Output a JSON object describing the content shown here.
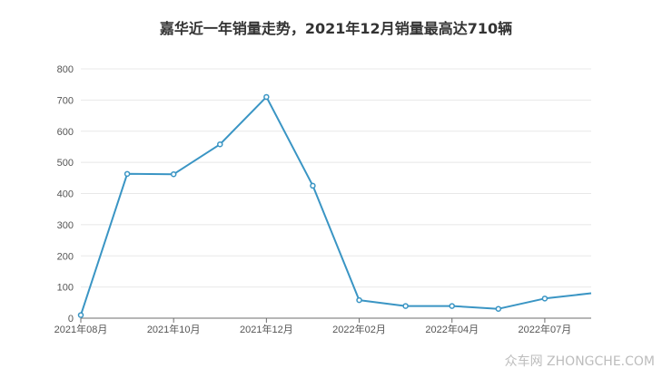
{
  "colors": {
    "line": "#3a95c4",
    "grid": "#e8e8e8",
    "axis": "#6e6e6e",
    "text": "#333333",
    "point_fill": "#ffffff"
  },
  "watermark": "众车网 ZHONGCHE.COM",
  "chart_data": {
    "type": "line",
    "title": "嘉华近一年销量走势，2021年12月销量最高达710辆",
    "xlabel": "",
    "ylabel": "",
    "ylim": [
      0,
      800
    ],
    "yticks": [
      0,
      100,
      200,
      300,
      400,
      500,
      600,
      700,
      800
    ],
    "x": [
      "2021年08月",
      "2021年09月",
      "2021年10月",
      "2021年11月",
      "2021年12月",
      "2022年01月",
      "2022年02月",
      "2022年03月",
      "2022年04月",
      "2022年05月",
      "2022年07月",
      "2022年08月"
    ],
    "x_tick_labels": [
      "2021年08月",
      "2021年10月",
      "2021年12月",
      "2022年02月",
      "2022年04月",
      "2022年07月"
    ],
    "values": [
      10,
      463,
      462,
      558,
      710,
      425,
      58,
      39,
      39,
      30,
      63,
      80
    ],
    "grid": true,
    "legend": "none"
  }
}
